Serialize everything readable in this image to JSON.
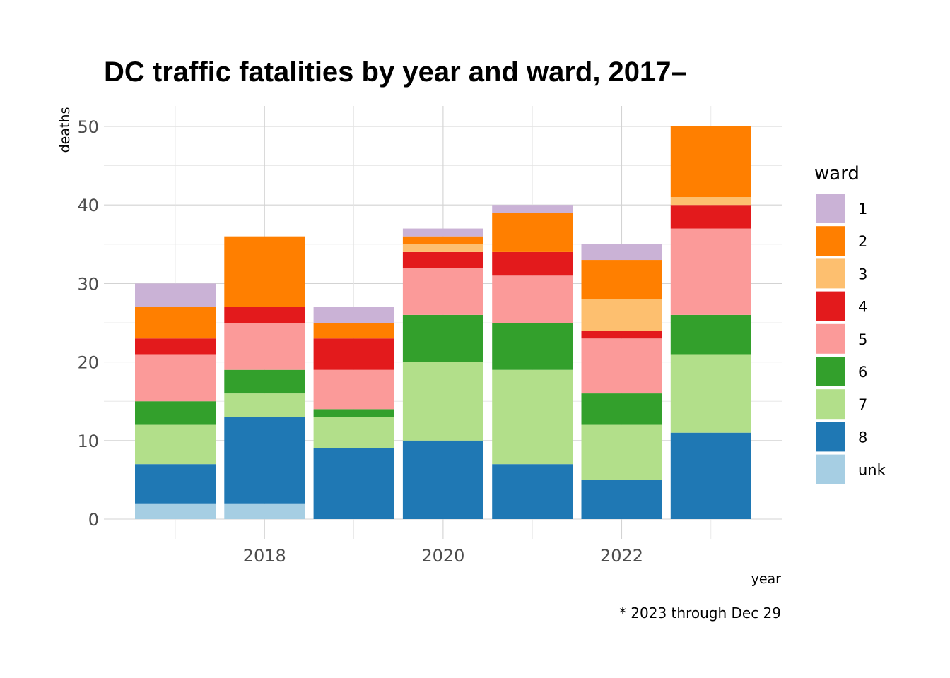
{
  "chart_data": {
    "type": "bar",
    "stacked": true,
    "title": "DC traffic fatalities by year and ward, 2017–",
    "xlabel": "year",
    "ylabel": "deaths",
    "caption": "* 2023 through Dec 29",
    "legend_title": "ward",
    "legend_position": "right",
    "grid": true,
    "x": [
      2017,
      2018,
      2019,
      2020,
      2021,
      2022,
      2023
    ],
    "x_ticks": [
      2018,
      2020,
      2022
    ],
    "y_ticks": [
      0,
      10,
      20,
      30,
      40,
      50
    ],
    "ylim": [
      0,
      52
    ],
    "stack_order_bottom_to_top": [
      "unk",
      "8",
      "7",
      "6",
      "5",
      "4",
      "3",
      "2",
      "1"
    ],
    "series": [
      {
        "name": "1",
        "color": "#CAB2D6",
        "values": [
          3,
          0,
          2,
          1,
          1,
          2,
          0
        ]
      },
      {
        "name": "2",
        "color": "#FF7F00",
        "values": [
          4,
          9,
          2,
          1,
          5,
          5,
          9
        ]
      },
      {
        "name": "3",
        "color": "#FDBF6F",
        "values": [
          0,
          0,
          0,
          1,
          0,
          4,
          1
        ]
      },
      {
        "name": "4",
        "color": "#E31A1C",
        "values": [
          2,
          2,
          4,
          2,
          3,
          1,
          3
        ]
      },
      {
        "name": "5",
        "color": "#FB9A99",
        "values": [
          6,
          6,
          5,
          6,
          6,
          7,
          11
        ]
      },
      {
        "name": "6",
        "color": "#33A02C",
        "values": [
          3,
          3,
          1,
          6,
          6,
          4,
          5
        ]
      },
      {
        "name": "7",
        "color": "#B2DF8A",
        "values": [
          5,
          3,
          4,
          10,
          12,
          7,
          10
        ]
      },
      {
        "name": "8",
        "color": "#1F78B4",
        "values": [
          5,
          11,
          9,
          10,
          7,
          5,
          11
        ]
      },
      {
        "name": "unk",
        "color": "#A6CEE3",
        "values": [
          2,
          2,
          0,
          0,
          0,
          0,
          0
        ]
      }
    ]
  }
}
